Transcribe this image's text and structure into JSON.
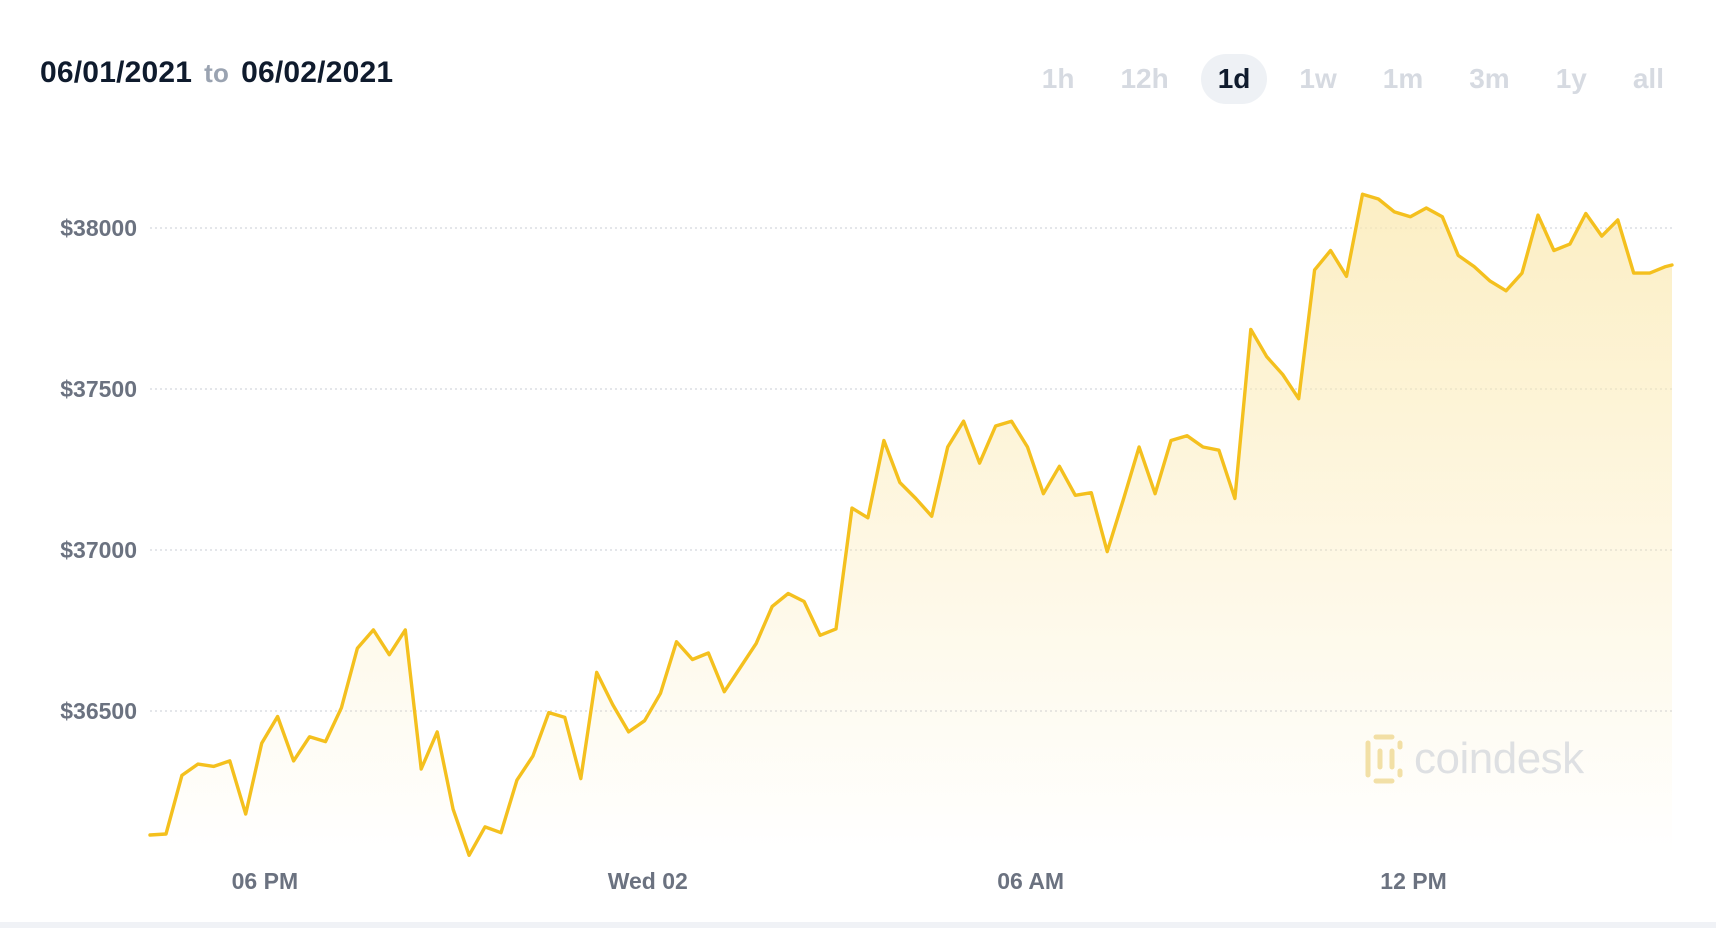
{
  "header": {
    "start_date": "06/01/2021",
    "separator": "to",
    "end_date": "06/02/2021"
  },
  "range_tabs": [
    {
      "label": "1h",
      "active": false
    },
    {
      "label": "12h",
      "active": false
    },
    {
      "label": "1d",
      "active": true
    },
    {
      "label": "1w",
      "active": false
    },
    {
      "label": "1m",
      "active": false
    },
    {
      "label": "3m",
      "active": false
    },
    {
      "label": "1y",
      "active": false
    },
    {
      "label": "all",
      "active": false
    }
  ],
  "watermark": {
    "text": "coindesk",
    "icon": "coindesk-logo-icon"
  },
  "colors": {
    "line": "#f4c01e",
    "fill_top": "#fbe9b0",
    "active_tab_bg": "#eef1f5",
    "title": "#0f1b2d"
  },
  "chart_data": {
    "type": "area",
    "title": "",
    "xlabel": "",
    "ylabel": "",
    "grid": true,
    "legend": "none",
    "ylim": [
      36000,
      38250
    ],
    "y_ticks": [
      38000,
      37500,
      37000,
      36500
    ],
    "y_tick_labels": [
      "$38000",
      "$37500",
      "$37000",
      "$36500"
    ],
    "x_tick_labels": [
      "06 PM",
      "Wed 02",
      "06 AM",
      "12 PM"
    ],
    "x_tick_hours": [
      18,
      24,
      30,
      36
    ],
    "x_range_hours": [
      16.2,
      40.05
    ],
    "x_unit": "hours from 06/01/2021 00:00",
    "series": [
      {
        "x": [
          16.2,
          16.45,
          16.7,
          16.95,
          17.2,
          17.45,
          17.7,
          17.95,
          18.2,
          18.45,
          18.7,
          18.95,
          19.2,
          19.45,
          19.7,
          19.95,
          20.2,
          20.45,
          20.7,
          20.95,
          21.2,
          21.45,
          21.7,
          21.95,
          22.2,
          22.45,
          22.7,
          22.95,
          23.2,
          23.45,
          23.7,
          23.95,
          24.2,
          24.45,
          24.7,
          24.95,
          25.2,
          25.45,
          25.7,
          25.95,
          26.2,
          26.45,
          26.7,
          26.95,
          27.2,
          27.45,
          27.7,
          27.95,
          28.2,
          28.45,
          28.7,
          28.95,
          29.2,
          29.45,
          29.7,
          29.95,
          30.2,
          30.45,
          30.7,
          30.95,
          31.2,
          31.45,
          31.7,
          31.95,
          32.2,
          32.45,
          32.7,
          32.95,
          33.2,
          33.45,
          33.7,
          33.95,
          34.2,
          34.45,
          34.7,
          34.95,
          35.2,
          35.45,
          35.7,
          35.95,
          36.2,
          36.45,
          36.7,
          36.95,
          37.2,
          37.45,
          37.7,
          37.95,
          38.2,
          38.45,
          38.7,
          38.95,
          39.2,
          39.45,
          39.7,
          39.95,
          40.05
        ],
        "values": [
          36115,
          36118,
          36300,
          36335,
          36328,
          36345,
          36180,
          36400,
          36483,
          36345,
          36420,
          36405,
          36510,
          36695,
          36752,
          36675,
          36752,
          36320,
          36435,
          36195,
          36052,
          36140,
          36122,
          36285,
          36360,
          36495,
          36480,
          36290,
          36620,
          36520,
          36435,
          36470,
          36555,
          36715,
          36660,
          36680,
          36560,
          36635,
          36710,
          36825,
          36865,
          36840,
          36735,
          36755,
          37130,
          37100,
          37340,
          37210,
          37160,
          37105,
          37320,
          37400,
          37270,
          37385,
          37400,
          37320,
          37175,
          37260,
          37170,
          37178,
          36995,
          37155,
          37320,
          37175,
          37340,
          37355,
          37320,
          37310,
          37160,
          37685,
          37600,
          37545,
          37470,
          37870,
          37930,
          37850,
          38105,
          38090,
          38050,
          38035,
          38062,
          38035,
          37915,
          37880,
          37835,
          37805,
          37860,
          38040,
          37930,
          37950,
          38045,
          37975,
          38025,
          37860,
          37860,
          37880,
          37885
        ]
      }
    ]
  }
}
